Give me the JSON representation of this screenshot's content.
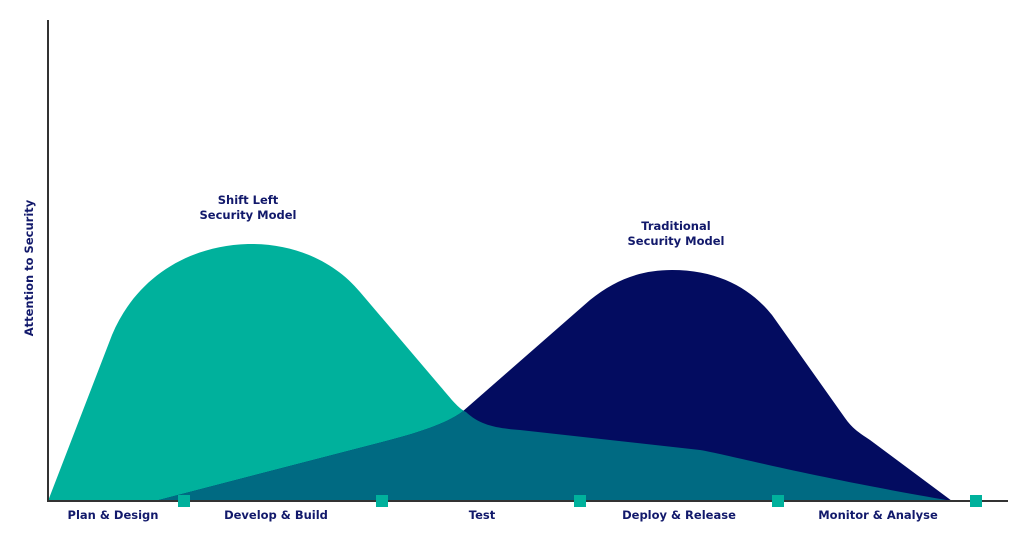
{
  "title_y_axis": "Attention to Security",
  "curves": [
    {
      "id": "shift-left",
      "label_line1": "Shift Left",
      "label_line2": "Security Model",
      "color": "#00b19c"
    },
    {
      "id": "traditional",
      "label_line1": "Traditional",
      "label_line2": "Security Model",
      "color": "#030c60"
    }
  ],
  "overlap_color": "#006a82",
  "axis_color": "#333333",
  "marker_color": "#00b19c",
  "stages": [
    "Plan & Design",
    "Develop & Build",
    "Test",
    "Deploy & Release",
    "Monitor & Analyse"
  ],
  "text_color": "#12196b"
}
